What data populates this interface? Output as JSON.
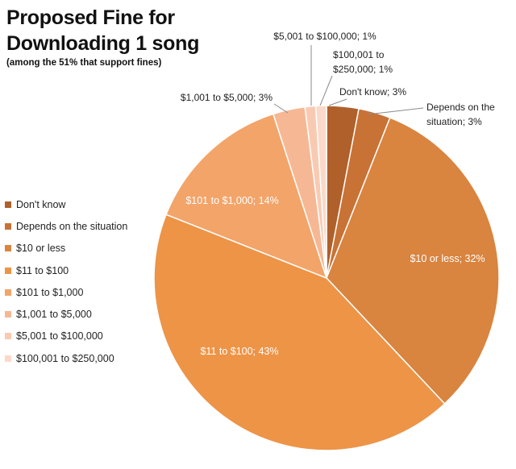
{
  "chart_data": {
    "type": "pie",
    "title": "Proposed Fine for Downloading 1 song",
    "title_lines": [
      "Proposed Fine for",
      "Downloading 1 song"
    ],
    "subtitle": "(among the 51% that support fines)",
    "legend_position": "left",
    "slices": [
      {
        "label": "Don't know",
        "value": 3,
        "color": "#b0602a",
        "data_label": [
          "Don't know; 3%"
        ]
      },
      {
        "label": "Depends on the situation",
        "value": 3,
        "color": "#c97235",
        "data_label": [
          "Depends on the",
          "situation; 3%"
        ]
      },
      {
        "label": "$10 or less",
        "value": 32,
        "color": "#d9843f",
        "data_label": [
          "$10 or less; 32%"
        ]
      },
      {
        "label": "$11 to $100",
        "value": 43,
        "color": "#ed9447",
        "data_label": [
          "$11 to $100; 43%"
        ]
      },
      {
        "label": "$101 to $1,000",
        "value": 14,
        "color": "#f3a469",
        "data_label": [
          "$101 to $1,000; 14%"
        ]
      },
      {
        "label": "$1,001 to $5,000",
        "value": 3,
        "color": "#f6b894",
        "data_label": [
          "$1,001 to $5,000; 3%"
        ]
      },
      {
        "label": "$5,001 to $100,000",
        "value": 1,
        "color": "#f9cab2",
        "data_label": [
          "$5,001 to $100,000; 1%"
        ]
      },
      {
        "label": "$100,001 to $250,000",
        "value": 1,
        "color": "#fbd9c9",
        "data_label": [
          "$100,001 to",
          "$250,000; 1%"
        ]
      }
    ]
  }
}
